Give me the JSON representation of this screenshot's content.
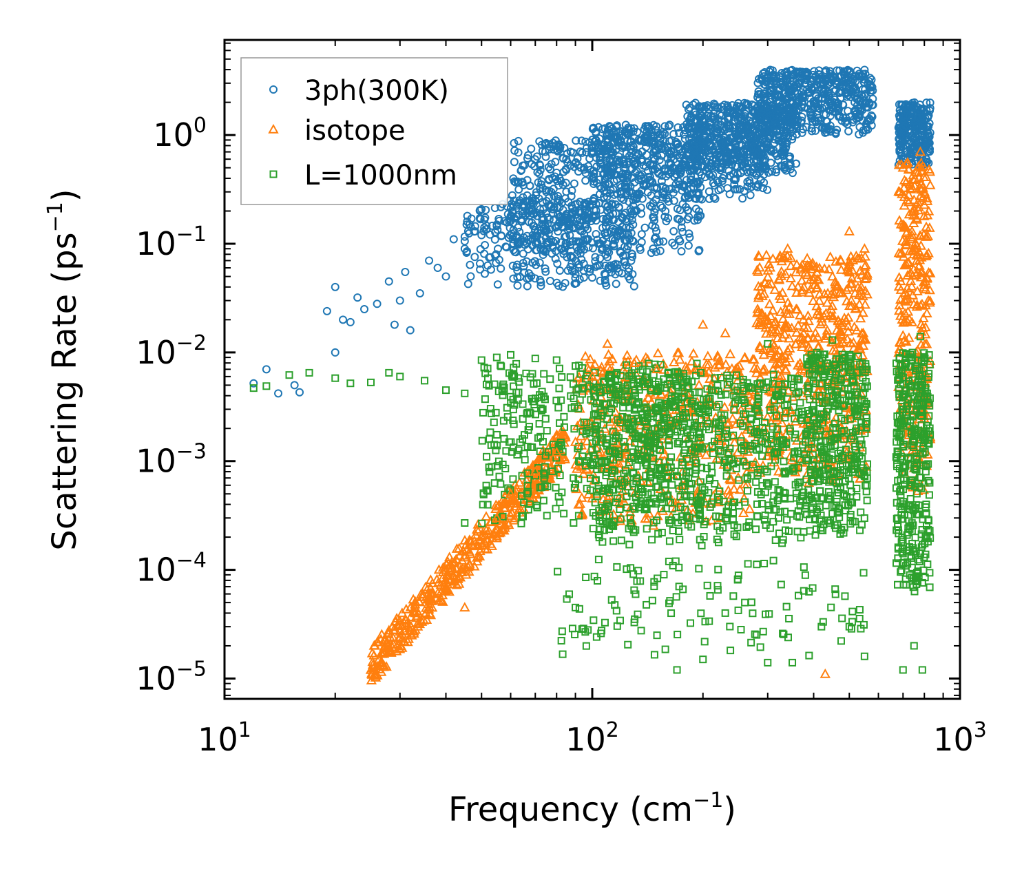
{
  "chart_data": {
    "type": "scatter",
    "title": "",
    "xlabel": {
      "base": "Frequency (cm",
      "exp": "−1",
      "close": ")"
    },
    "ylabel": {
      "base": "Scattering Rate (ps",
      "exp": "−1",
      "close": ")"
    },
    "xscale": "log",
    "yscale": "log",
    "xlim": [
      10,
      1000
    ],
    "ylim": [
      6.5e-06,
      7.5
    ],
    "xticks": [
      {
        "value": 10,
        "base": "10",
        "exp": "1"
      },
      {
        "value": 100,
        "base": "10",
        "exp": "2"
      },
      {
        "value": 1000,
        "base": "10",
        "exp": "3"
      }
    ],
    "yticks": [
      {
        "value": 1e-05,
        "base": "10",
        "exp": "−5"
      },
      {
        "value": 0.0001,
        "base": "10",
        "exp": "−4"
      },
      {
        "value": 0.001,
        "base": "10",
        "exp": "−3"
      },
      {
        "value": 0.01,
        "base": "10",
        "exp": "−2"
      },
      {
        "value": 0.1,
        "base": "10",
        "exp": "−1"
      },
      {
        "value": 1,
        "base": "10",
        "exp": "0"
      }
    ],
    "legend_position": "top-left",
    "series": [
      {
        "name": "3ph(300K)",
        "marker": "circle",
        "color": "#1f77b4",
        "points": [
          [
            12,
            0.0052
          ],
          [
            13,
            0.007
          ],
          [
            14,
            0.0042
          ],
          [
            15.5,
            0.005
          ],
          [
            16,
            0.0043
          ],
          [
            19,
            0.024
          ],
          [
            20,
            0.04
          ],
          [
            20,
            0.01
          ],
          [
            21,
            0.02
          ],
          [
            22,
            0.019
          ],
          [
            23,
            0.032
          ],
          [
            24,
            0.025
          ],
          [
            26,
            0.028
          ],
          [
            28,
            0.045
          ],
          [
            29,
            0.018
          ],
          [
            30,
            0.03
          ],
          [
            31,
            0.055
          ],
          [
            32,
            0.016
          ],
          [
            34,
            0.035
          ],
          [
            36,
            0.07
          ],
          [
            38,
            0.06
          ],
          [
            40,
            0.05
          ],
          [
            42,
            0.11
          ],
          [
            45,
            0.09
          ],
          [
            48,
            0.13
          ],
          [
            50,
            0.12
          ],
          [
            55,
            0.15
          ],
          [
            60,
            0.18
          ],
          [
            65,
            0.22
          ],
          [
            70,
            0.25
          ],
          [
            75,
            0.3
          ],
          [
            80,
            0.45
          ],
          [
            85,
            0.6
          ],
          [
            90,
            0.55
          ],
          [
            95,
            0.5
          ],
          [
            100,
            0.4
          ],
          [
            110,
            0.45
          ],
          [
            120,
            0.3
          ],
          [
            130,
            0.2
          ],
          [
            140,
            0.35
          ],
          [
            150,
            0.5
          ],
          [
            170,
            0.65
          ],
          [
            200,
            0.9
          ],
          [
            220,
            1.4
          ],
          [
            250,
            1.6
          ],
          [
            280,
            1.5
          ],
          [
            300,
            1.7
          ],
          [
            320,
            2.0
          ],
          [
            350,
            2.6
          ],
          [
            380,
            3.0
          ],
          [
            400,
            3.2
          ],
          [
            450,
            3.5
          ],
          [
            500,
            2.8
          ],
          [
            550,
            2.3
          ],
          [
            700,
            1.5
          ],
          [
            750,
            1.8
          ],
          [
            780,
            1.0
          ],
          [
            810,
            0.6
          ]
        ],
        "bands": [
          {
            "x": [
              45,
              130
            ],
            "logy": [
              -1.4,
              -0.6
            ],
            "n": 400
          },
          {
            "x": [
              60,
              200
            ],
            "logy": [
              -1.1,
              -0.05
            ],
            "n": 500
          },
          {
            "x": [
              100,
              300
            ],
            "logy": [
              -0.6,
              0.1
            ],
            "n": 500
          },
          {
            "x": [
              180,
              360
            ],
            "logy": [
              -0.35,
              0.3
            ],
            "n": 500
          },
          {
            "x": [
              280,
              580
            ],
            "logy": [
              0.0,
              0.6
            ],
            "n": 500
          },
          {
            "x": [
              680,
              830
            ],
            "logy": [
              -0.3,
              0.3
            ],
            "n": 250
          }
        ]
      },
      {
        "name": "isotope",
        "marker": "triangle",
        "color": "#ff7f0e",
        "points": [
          [
            25,
            1.2e-05
          ],
          [
            26,
            1.3e-05
          ],
          [
            28,
            1.8e-05
          ],
          [
            30,
            2.7e-05
          ],
          [
            33,
            4e-05
          ],
          [
            36,
            5.5e-05
          ],
          [
            40,
            8e-05
          ],
          [
            45,
            4.5e-05
          ],
          [
            45,
            0.00013
          ],
          [
            50,
            0.0002
          ],
          [
            55,
            0.0003
          ],
          [
            60,
            0.0005
          ],
          [
            70,
            0.0008
          ],
          [
            80,
            0.0012
          ],
          [
            90,
            0.0015
          ],
          [
            100,
            0.006
          ],
          [
            110,
            0.012
          ],
          [
            130,
            0.008
          ],
          [
            150,
            0.007
          ],
          [
            200,
            0.018
          ],
          [
            230,
            0.015
          ],
          [
            260,
            0.009
          ],
          [
            300,
            0.02
          ],
          [
            340,
            0.09
          ],
          [
            380,
            0.06
          ],
          [
            430,
            1.1e-05
          ],
          [
            450,
            0.05
          ],
          [
            500,
            0.13
          ],
          [
            550,
            0.09
          ],
          [
            700,
            0.15
          ],
          [
            740,
            0.12
          ],
          [
            780,
            0.7
          ],
          [
            800,
            0.3
          ],
          [
            820,
            0.03
          ]
        ],
        "bands": [
          {
            "x": [
              25,
              85
            ],
            "logy": [
              -4.95,
              -2.9
            ],
            "n": 450,
            "trend": true
          },
          {
            "x": [
              90,
              280
            ],
            "logy": [
              -3.6,
              -2.0
            ],
            "n": 450
          },
          {
            "x": [
              280,
              560
            ],
            "logy": [
              -3.2,
              -1.1
            ],
            "n": 550
          },
          {
            "x": [
              680,
              830
            ],
            "logy": [
              -3.3,
              -0.25
            ],
            "n": 300
          }
        ]
      },
      {
        "name": "L=1000nm",
        "marker": "square",
        "color": "#2ca02c",
        "points": [
          [
            12,
            0.0047
          ],
          [
            13,
            0.0049
          ],
          [
            15,
            0.0062
          ],
          [
            17,
            0.0065
          ],
          [
            20,
            0.0058
          ],
          [
            22,
            0.0052
          ],
          [
            25,
            0.0053
          ],
          [
            28,
            0.0065
          ],
          [
            30,
            0.006
          ],
          [
            35,
            0.0055
          ],
          [
            40,
            0.0045
          ],
          [
            45,
            0.0042
          ],
          [
            50,
            0.0085
          ],
          [
            55,
            0.009
          ],
          [
            60,
            0.0095
          ],
          [
            70,
            0.0088
          ],
          [
            80,
            0.0085
          ],
          [
            90,
            0.0075
          ],
          [
            45,
            0.00027
          ],
          [
            90,
            4.5e-05
          ],
          [
            130,
            6.5e-05
          ],
          [
            150,
            2.5e-05
          ],
          [
            170,
            1.2e-05
          ],
          [
            200,
            1.5e-05
          ],
          [
            230,
            4e-05
          ],
          [
            260,
            5e-05
          ],
          [
            300,
            1.4e-05
          ],
          [
            350,
            1.4e-05
          ],
          [
            420,
            3e-05
          ],
          [
            500,
            3e-05
          ],
          [
            550,
            1.6e-05
          ],
          [
            700,
            1.2e-05
          ],
          [
            750,
            2e-05
          ],
          [
            790,
            1.2e-05
          ],
          [
            300,
            0.012
          ],
          [
            450,
            0.013
          ],
          [
            780,
            0.014
          ]
        ],
        "bands": [
          {
            "x": [
              50,
              200
            ],
            "logy": [
              -3.6,
              -2.1
            ],
            "n": 500
          },
          {
            "x": [
              100,
              380
            ],
            "logy": [
              -3.8,
              -2.2
            ],
            "n": 650
          },
          {
            "x": [
              380,
              560
            ],
            "logy": [
              -3.7,
              -2.0
            ],
            "n": 400
          },
          {
            "x": [
              670,
              830
            ],
            "logy": [
              -4.3,
              -2.0
            ],
            "n": 350
          },
          {
            "x": [
              80,
              560
            ],
            "logy": [
              -4.8,
              -3.9
            ],
            "n": 120
          }
        ]
      }
    ]
  }
}
